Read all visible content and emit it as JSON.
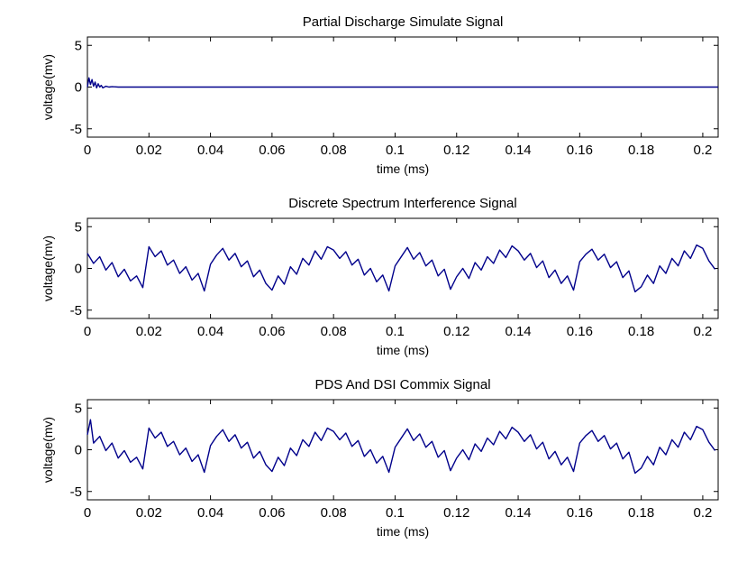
{
  "chart_data": [
    {
      "type": "line",
      "title": "Partial Discharge Simulate Signal",
      "xlabel": "time (ms)",
      "ylabel": "voltage(mv)",
      "xlim": [
        0,
        0.205
      ],
      "ylim": [
        -6,
        6
      ],
      "xticks": [
        "0",
        "0.02",
        "0.04",
        "0.06",
        "0.08",
        "0.1",
        "0.12",
        "0.14",
        "0.16",
        "0.18",
        "0.2"
      ],
      "yticks": [
        "5",
        "0",
        "-5"
      ],
      "grid": false,
      "series": [
        {
          "color": "#00008b",
          "x": [
            0,
            0.0005,
            0.001,
            0.0015,
            0.002,
            0.0025,
            0.003,
            0.0035,
            0.004,
            0.0045,
            0.005,
            0.006,
            0.007,
            0.008,
            0.01,
            0.02,
            0.05,
            0.1,
            0.15,
            0.2,
            0.205
          ],
          "y": [
            0,
            1.1,
            0.3,
            0.9,
            0.1,
            0.6,
            -0.1,
            0.4,
            0.0,
            0.2,
            -0.1,
            0.1,
            0.0,
            0.05,
            0,
            0,
            0,
            0,
            0,
            0,
            0
          ]
        }
      ]
    },
    {
      "type": "line",
      "title": "Discrete Spectrum Interference Signal",
      "xlabel": "time (ms)",
      "ylabel": "voltage(mv)",
      "xlim": [
        0,
        0.205
      ],
      "ylim": [
        -6,
        6
      ],
      "xticks": [
        "0",
        "0.02",
        "0.04",
        "0.06",
        "0.08",
        "0.1",
        "0.12",
        "0.14",
        "0.16",
        "0.18",
        "0.2"
      ],
      "yticks": [
        "5",
        "0",
        "-5"
      ],
      "grid": false,
      "series": [
        {
          "color": "#00008b",
          "x": [
            0,
            0.002,
            0.004,
            0.006,
            0.008,
            0.01,
            0.012,
            0.014,
            0.016,
            0.018,
            0.02,
            0.022,
            0.024,
            0.026,
            0.028,
            0.03,
            0.032,
            0.034,
            0.036,
            0.038,
            0.04,
            0.042,
            0.044,
            0.046,
            0.048,
            0.05,
            0.052,
            0.054,
            0.056,
            0.058,
            0.06,
            0.062,
            0.064,
            0.066,
            0.068,
            0.07,
            0.072,
            0.074,
            0.076,
            0.078,
            0.08,
            0.082,
            0.084,
            0.086,
            0.088,
            0.09,
            0.092,
            0.094,
            0.096,
            0.098,
            0.1,
            0.102,
            0.104,
            0.106,
            0.108,
            0.11,
            0.112,
            0.114,
            0.116,
            0.118,
            0.12,
            0.122,
            0.124,
            0.126,
            0.128,
            0.13,
            0.132,
            0.134,
            0.136,
            0.138,
            0.14,
            0.142,
            0.144,
            0.146,
            0.148,
            0.15,
            0.152,
            0.154,
            0.156,
            0.158,
            0.16,
            0.162,
            0.164,
            0.166,
            0.168,
            0.17,
            0.172,
            0.174,
            0.176,
            0.178,
            0.18,
            0.182,
            0.184,
            0.186,
            0.188,
            0.19,
            0.192,
            0.194,
            0.196,
            0.198,
            0.2,
            0.202,
            0.204
          ],
          "y": [
            1.8,
            0.6,
            1.4,
            -0.2,
            0.7,
            -1.0,
            -0.1,
            -1.5,
            -0.9,
            -2.3,
            2.6,
            1.4,
            2.1,
            0.4,
            1.0,
            -0.6,
            0.2,
            -1.4,
            -0.6,
            -2.7,
            0.5,
            1.6,
            2.4,
            1.0,
            1.8,
            0.2,
            0.9,
            -1.0,
            -0.2,
            -1.8,
            -2.6,
            -0.9,
            -1.9,
            0.2,
            -0.7,
            1.2,
            0.4,
            2.1,
            1.1,
            2.6,
            2.2,
            1.2,
            2.0,
            0.4,
            1.1,
            -0.8,
            0.0,
            -1.6,
            -0.8,
            -2.7,
            0.3,
            1.4,
            2.5,
            1.1,
            1.9,
            0.3,
            1.0,
            -0.9,
            -0.1,
            -2.5,
            -1.0,
            0.0,
            -1.2,
            0.7,
            -0.2,
            1.4,
            0.6,
            2.2,
            1.3,
            2.7,
            2.1,
            1.0,
            1.8,
            0.1,
            0.9,
            -1.1,
            -0.2,
            -1.8,
            -0.9,
            -2.6,
            0.8,
            1.7,
            2.3,
            1.0,
            1.7,
            0.1,
            0.8,
            -1.1,
            -0.3,
            -2.8,
            -2.2,
            -0.8,
            -1.8,
            0.3,
            -0.6,
            1.2,
            0.3,
            2.1,
            1.2,
            2.8,
            2.4,
            0.9,
            -0.1
          ]
        }
      ]
    },
    {
      "type": "line",
      "title": "PDS And DSI Commix Signal",
      "xlabel": "time (ms)",
      "ylabel": "voltage(mv)",
      "xlim": [
        0,
        0.205
      ],
      "ylim": [
        -6,
        6
      ],
      "xticks": [
        "0",
        "0.02",
        "0.04",
        "0.06",
        "0.08",
        "0.1",
        "0.12",
        "0.14",
        "0.16",
        "0.18",
        "0.2"
      ],
      "yticks": [
        "5",
        "0",
        "-5"
      ],
      "grid": false,
      "series": [
        {
          "color": "#00008b",
          "x": [
            0,
            0.001,
            0.002,
            0.004,
            0.006,
            0.008,
            0.01,
            0.012,
            0.014,
            0.016,
            0.018,
            0.02,
            0.022,
            0.024,
            0.026,
            0.028,
            0.03,
            0.032,
            0.034,
            0.036,
            0.038,
            0.04,
            0.042,
            0.044,
            0.046,
            0.048,
            0.05,
            0.052,
            0.054,
            0.056,
            0.058,
            0.06,
            0.062,
            0.064,
            0.066,
            0.068,
            0.07,
            0.072,
            0.074,
            0.076,
            0.078,
            0.08,
            0.082,
            0.084,
            0.086,
            0.088,
            0.09,
            0.092,
            0.094,
            0.096,
            0.098,
            0.1,
            0.102,
            0.104,
            0.106,
            0.108,
            0.11,
            0.112,
            0.114,
            0.116,
            0.118,
            0.12,
            0.122,
            0.124,
            0.126,
            0.128,
            0.13,
            0.132,
            0.134,
            0.136,
            0.138,
            0.14,
            0.142,
            0.144,
            0.146,
            0.148,
            0.15,
            0.152,
            0.154,
            0.156,
            0.158,
            0.16,
            0.162,
            0.164,
            0.166,
            0.168,
            0.17,
            0.172,
            0.174,
            0.176,
            0.178,
            0.18,
            0.182,
            0.184,
            0.186,
            0.188,
            0.19,
            0.192,
            0.194,
            0.196,
            0.198,
            0.2,
            0.202,
            0.204
          ],
          "y": [
            1.8,
            3.6,
            0.8,
            1.6,
            -0.1,
            0.8,
            -1.0,
            -0.1,
            -1.5,
            -0.9,
            -2.3,
            2.6,
            1.4,
            2.1,
            0.4,
            1.0,
            -0.6,
            0.2,
            -1.4,
            -0.6,
            -2.7,
            0.5,
            1.6,
            2.4,
            1.0,
            1.8,
            0.2,
            0.9,
            -1.0,
            -0.2,
            -1.8,
            -2.6,
            -0.9,
            -1.9,
            0.2,
            -0.7,
            1.2,
            0.4,
            2.1,
            1.1,
            2.6,
            2.2,
            1.2,
            2.0,
            0.4,
            1.1,
            -0.8,
            0.0,
            -1.6,
            -0.8,
            -2.7,
            0.3,
            1.4,
            2.5,
            1.1,
            1.9,
            0.3,
            1.0,
            -0.9,
            -0.1,
            -2.5,
            -1.0,
            0.0,
            -1.2,
            0.7,
            -0.2,
            1.4,
            0.6,
            2.2,
            1.3,
            2.7,
            2.1,
            1.0,
            1.8,
            0.1,
            0.9,
            -1.1,
            -0.2,
            -1.8,
            -0.9,
            -2.6,
            0.8,
            1.7,
            2.3,
            1.0,
            1.7,
            0.1,
            0.8,
            -1.1,
            -0.3,
            -2.8,
            -2.2,
            -0.8,
            -1.8,
            0.3,
            -0.6,
            1.2,
            0.3,
            2.1,
            1.2,
            2.8,
            2.4,
            0.9,
            -0.1
          ]
        }
      ]
    }
  ]
}
